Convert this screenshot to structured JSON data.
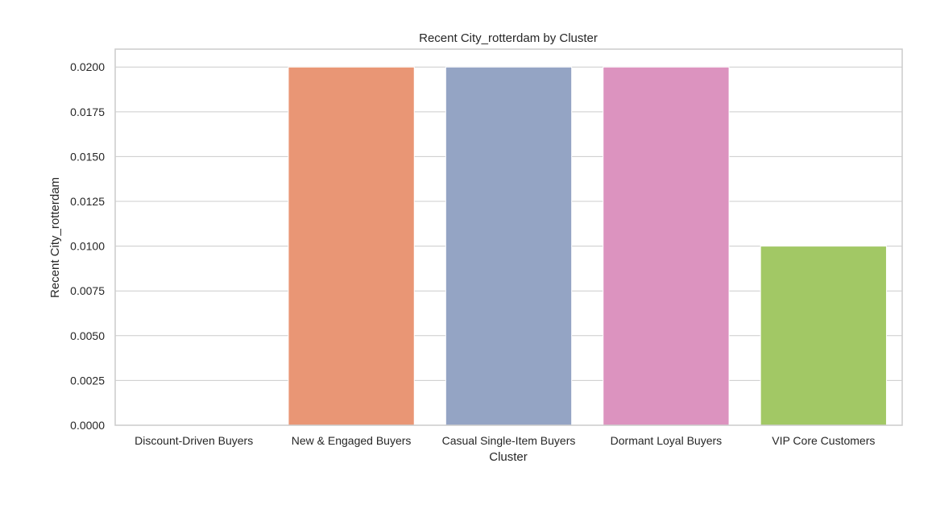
{
  "chart_data": {
    "type": "bar",
    "title": "Recent City_rotterdam by Cluster",
    "xlabel": "Cluster",
    "ylabel": "Recent City_rotterdam",
    "categories": [
      "Discount-Driven Buyers",
      "New & Engaged Buyers",
      "Casual Single-Item Buyers",
      "Dormant Loyal Buyers",
      "VIP Core Customers"
    ],
    "values": [
      0.0,
      0.02,
      0.02,
      0.02,
      0.01
    ],
    "colors": [
      "#66c2a5",
      "#e99675",
      "#94a4c4",
      "#dc93bf",
      "#a2c865"
    ],
    "ylim": [
      0,
      0.021
    ],
    "yticks": [
      0.0,
      0.0025,
      0.005,
      0.0075,
      0.01,
      0.0125,
      0.015,
      0.0175,
      0.02
    ],
    "ytick_labels": [
      "0.0000",
      "0.0025",
      "0.0050",
      "0.0075",
      "0.0100",
      "0.0125",
      "0.0150",
      "0.0175",
      "0.0200"
    ],
    "grid": true,
    "legend": "none"
  }
}
